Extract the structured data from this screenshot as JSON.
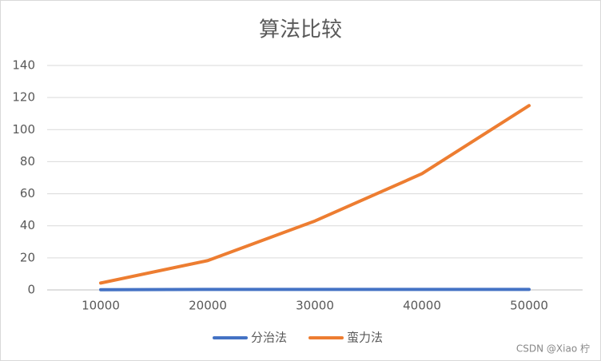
{
  "chart_data": {
    "type": "line",
    "title": "算法比较",
    "categories": [
      "10000",
      "20000",
      "30000",
      "40000",
      "50000"
    ],
    "series": [
      {
        "name": "分治法",
        "color": "#4472c4",
        "values": [
          0.1,
          0.3,
          0.3,
          0.3,
          0.3
        ]
      },
      {
        "name": "蛮力法",
        "color": "#ed7d31",
        "values": [
          4.3,
          18.3,
          43,
          72.5,
          115
        ]
      }
    ],
    "ylim": [
      0,
      140
    ],
    "yticks": [
      0,
      20,
      40,
      60,
      80,
      100,
      120,
      140
    ],
    "grid": true,
    "legend": "bottom"
  },
  "watermark": "CSDN @Xiao 柠"
}
